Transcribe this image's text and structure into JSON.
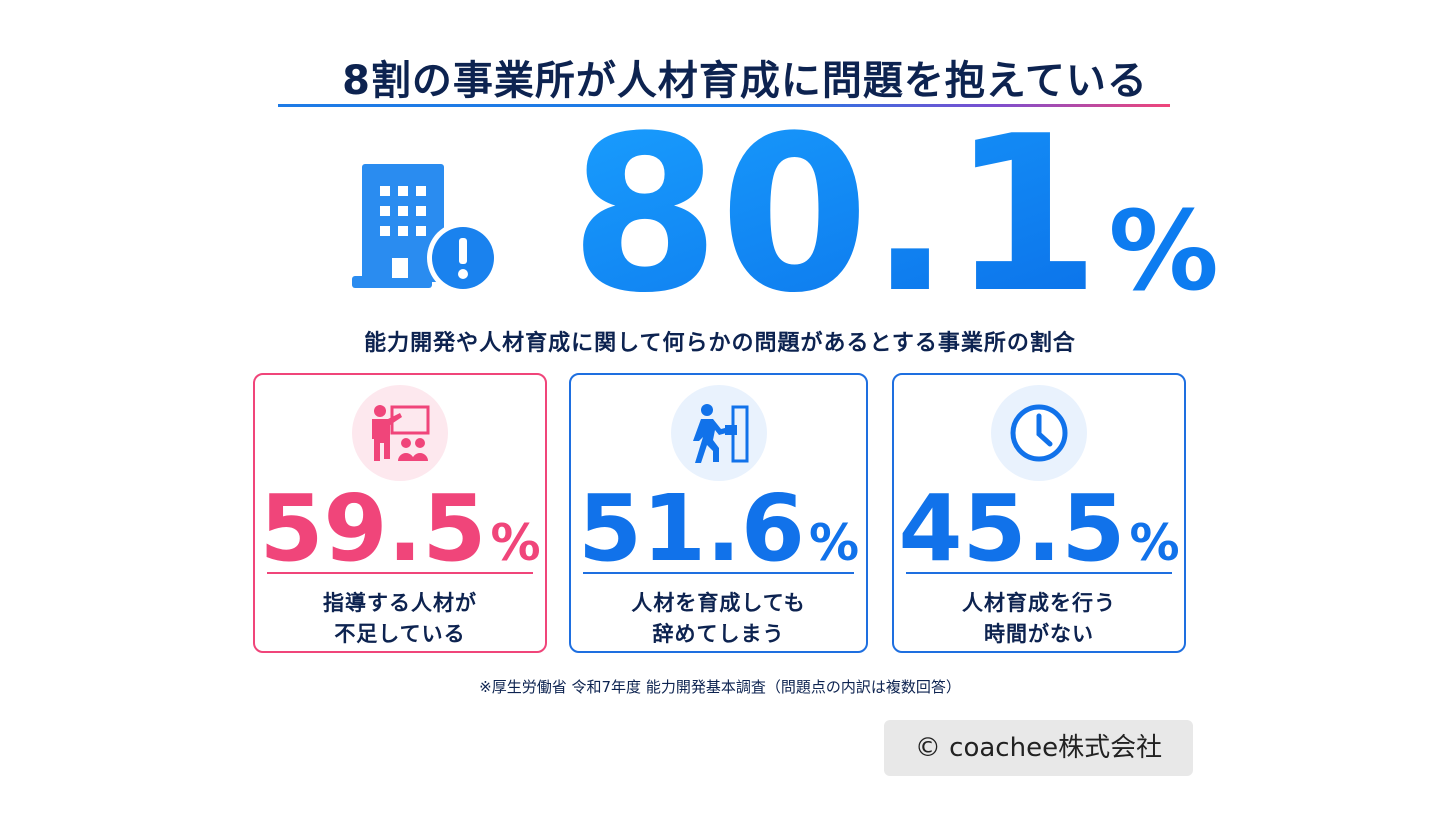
{
  "header": {
    "title": "8割の事業所が人材育成に問題を抱えている"
  },
  "headline": {
    "value": 80.1,
    "unit": "%",
    "caption": "能力開発や人材育成に関して何らかの問題があるとする事業所の割合"
  },
  "cards": [
    {
      "value": 59.5,
      "unit": "%",
      "label_lines": [
        "指導する人材が",
        "不足している"
      ]
    },
    {
      "value": 51.6,
      "unit": "%",
      "label_lines": [
        "人材を育成しても",
        "辞めてしまう"
      ]
    },
    {
      "value": 45.5,
      "unit": "%",
      "label_lines": [
        "人材育成を行う",
        "時間がない"
      ]
    }
  ],
  "footnote": "※厚生労働省 令和7年度 能力開発基本調査（問題点の内訳は複数回答）",
  "credit": "© coachee株式会社"
}
